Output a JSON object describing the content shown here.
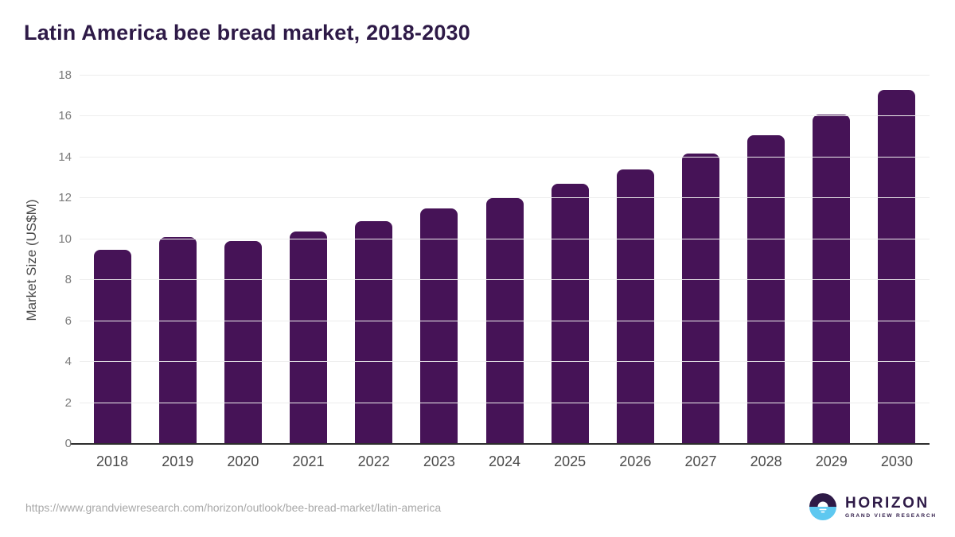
{
  "title": "Latin America bee bread market, 2018-2030",
  "y_axis": {
    "label": "Market Size (US$M)"
  },
  "footer": {
    "source_url": "https://www.grandviewresearch.com/horizon/outlook/bee-bread-market/latin-america",
    "logo": {
      "brand": "HORIZON",
      "subbrand": "GRAND VIEW RESEARCH"
    }
  },
  "colors": {
    "bar": "#461357",
    "title_text": "#2e1a47",
    "axis_line": "#2d2d2d",
    "gridline": "#ededed",
    "ytick_text": "#7a7a7a",
    "xtick_text": "#4a4a4a",
    "url_text": "#a8a8a8",
    "logo_purple": "#2e1a47",
    "logo_blue": "#5ec8f0"
  },
  "chart_data": {
    "type": "bar",
    "title": "Latin America bee bread market, 2018-2030",
    "categories": [
      "2018",
      "2019",
      "2020",
      "2021",
      "2022",
      "2023",
      "2024",
      "2025",
      "2026",
      "2027",
      "2028",
      "2029",
      "2030"
    ],
    "values": [
      9.5,
      10.1,
      9.9,
      10.4,
      10.9,
      11.5,
      12.0,
      12.7,
      13.4,
      14.2,
      15.1,
      16.1,
      17.3
    ],
    "xlabel": "",
    "ylabel": "Market Size (US$M)",
    "ylim": [
      0,
      18
    ],
    "yticks": [
      0,
      2,
      4,
      6,
      8,
      10,
      12,
      14,
      16,
      18
    ],
    "grid": true,
    "legend": false,
    "bar_color": "#461357"
  }
}
